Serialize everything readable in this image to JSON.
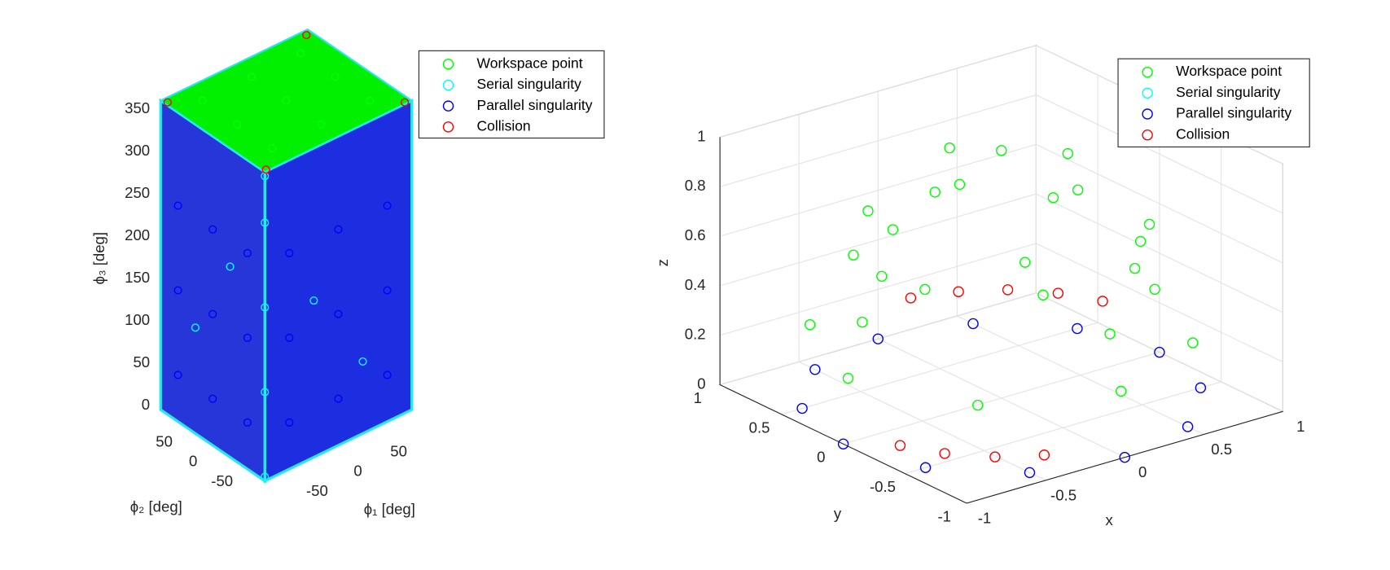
{
  "chart_data": [
    {
      "type": "scatter3d",
      "xlabel": "ϕ₁ [deg]",
      "ylabel": "ϕ₂ [deg]",
      "zlabel": "ϕ₃ [deg]",
      "xlim": [
        -90,
        90
      ],
      "ylim": [
        -90,
        90
      ],
      "zlim": [
        -5,
        360
      ],
      "xticks": [
        -50,
        0,
        50
      ],
      "yticks": [
        -50,
        0,
        50
      ],
      "zticks": [
        0,
        50,
        100,
        150,
        200,
        250,
        300,
        350
      ],
      "grid": false,
      "legend": "northeastoutside",
      "series": [
        {
          "name": "Workspace point",
          "color": "#00ff00",
          "x": [
            -60,
            0,
            60,
            -60,
            0,
            60,
            -60,
            0,
            60
          ],
          "y": [
            -60,
            -60,
            -60,
            0,
            0,
            0,
            60,
            60,
            60
          ],
          "z": [
            360,
            360,
            360,
            360,
            360,
            360,
            360,
            360,
            360
          ]
        },
        {
          "name": "Serial singularity",
          "color": "#00ffff",
          "x": [
            -90,
            -90,
            -90,
            -90,
            -90,
            -30,
            30,
            -90,
            -90
          ],
          "y": [
            -90,
            -90,
            -90,
            -90,
            -90,
            -90,
            -90,
            30,
            -30
          ],
          "z": [
            0,
            100,
            200,
            300,
            355,
            180,
            80,
            120,
            220
          ]
        },
        {
          "name": "Parallel singularity",
          "color": "#0000ff",
          "x": [
            -60,
            0,
            60,
            -60,
            0,
            60,
            -60,
            0,
            60,
            -90,
            -90,
            -90,
            -90,
            -90,
            -90,
            -90,
            -90,
            -90
          ],
          "y": [
            -90,
            -90,
            -90,
            -90,
            -90,
            -90,
            -90,
            -90,
            -90,
            -60,
            0,
            60,
            -60,
            0,
            60,
            -60,
            0,
            60
          ],
          "z": [
            50,
            50,
            50,
            150,
            150,
            150,
            250,
            250,
            250,
            50,
            50,
            50,
            150,
            150,
            150,
            250,
            250,
            250
          ]
        },
        {
          "name": "Collision",
          "color": "#ff0000",
          "x": [
            -85,
            85,
            85,
            -85
          ],
          "y": [
            85,
            85,
            -85,
            -85
          ],
          "z": [
            358,
            358,
            358,
            358
          ]
        }
      ]
    },
    {
      "type": "scatter3d",
      "xlabel": "x",
      "ylabel": "y",
      "zlabel": "z",
      "xlim": [
        -1,
        1
      ],
      "ylim": [
        -1,
        1
      ],
      "zlim": [
        0,
        1
      ],
      "xticks": [
        -1,
        -0.5,
        0,
        0.5,
        1
      ],
      "yticks": [
        -1,
        -0.5,
        0,
        0.5,
        1
      ],
      "zticks": [
        0,
        0.2,
        0.4,
        0.6,
        0.8,
        1
      ],
      "grid": true,
      "legend": "northeast",
      "series": [
        {
          "name": "Workspace point",
          "color": "#00ff00",
          "x": [
            0.97,
            0.68,
            0,
            -0.68,
            -0.97,
            -0.68,
            0,
            0.68,
            0.88,
            0,
            -0.88,
            0,
            0.71,
            0.29,
            -0.29,
            -0.71,
            -0.71,
            -0.29,
            0.29,
            0.71,
            0.42,
            0,
            -0.42,
            0,
            0
          ],
          "y": [
            0,
            0.68,
            0.97,
            0.68,
            0,
            -0.68,
            -0.97,
            -0.68,
            0,
            0.88,
            0,
            -0.88,
            0.29,
            0.71,
            0.71,
            0.29,
            -0.29,
            -0.71,
            -0.71,
            -0.29,
            0,
            0.42,
            0,
            -0.42,
            0
          ],
          "z": [
            0.26,
            0.26,
            0.26,
            0.26,
            0.26,
            0.26,
            0.26,
            0.26,
            0.47,
            0.47,
            0.47,
            0.47,
            0.64,
            0.64,
            0.64,
            0.64,
            0.64,
            0.64,
            0.64,
            0.64,
            0.91,
            0.91,
            0.91,
            0.91,
            1
          ]
        },
        {
          "name": "Serial singularity",
          "color": "#00ffff",
          "x": [],
          "y": [],
          "z": []
        },
        {
          "name": "Parallel singularity",
          "color": "#0000ff",
          "x": [
            1,
            0.87,
            0.5,
            0,
            -0.5,
            -0.87,
            -1,
            -0.87,
            -0.5,
            0,
            0.5,
            0.87
          ],
          "y": [
            0,
            0.5,
            0.87,
            1,
            0.87,
            0.5,
            0,
            -0.5,
            -0.87,
            -1,
            -0.87,
            -0.5
          ],
          "z": [
            0,
            0,
            0,
            0,
            0,
            0,
            0,
            0,
            0,
            0,
            0,
            0
          ]
        },
        {
          "name": "Collision",
          "color": "#ff0000",
          "x": [
            0.89,
            0.78,
            0.61,
            0.4,
            0.16,
            -0.89,
            -0.78,
            -0.61,
            -0.4
          ],
          "y": [
            0.32,
            0.54,
            0.73,
            0.86,
            0.94,
            -0.32,
            -0.54,
            -0.73,
            -0.86
          ],
          "z": [
            0.15,
            0.15,
            0.15,
            0.15,
            0.15,
            0.05,
            0.05,
            0.05,
            0.05
          ]
        }
      ]
    }
  ]
}
